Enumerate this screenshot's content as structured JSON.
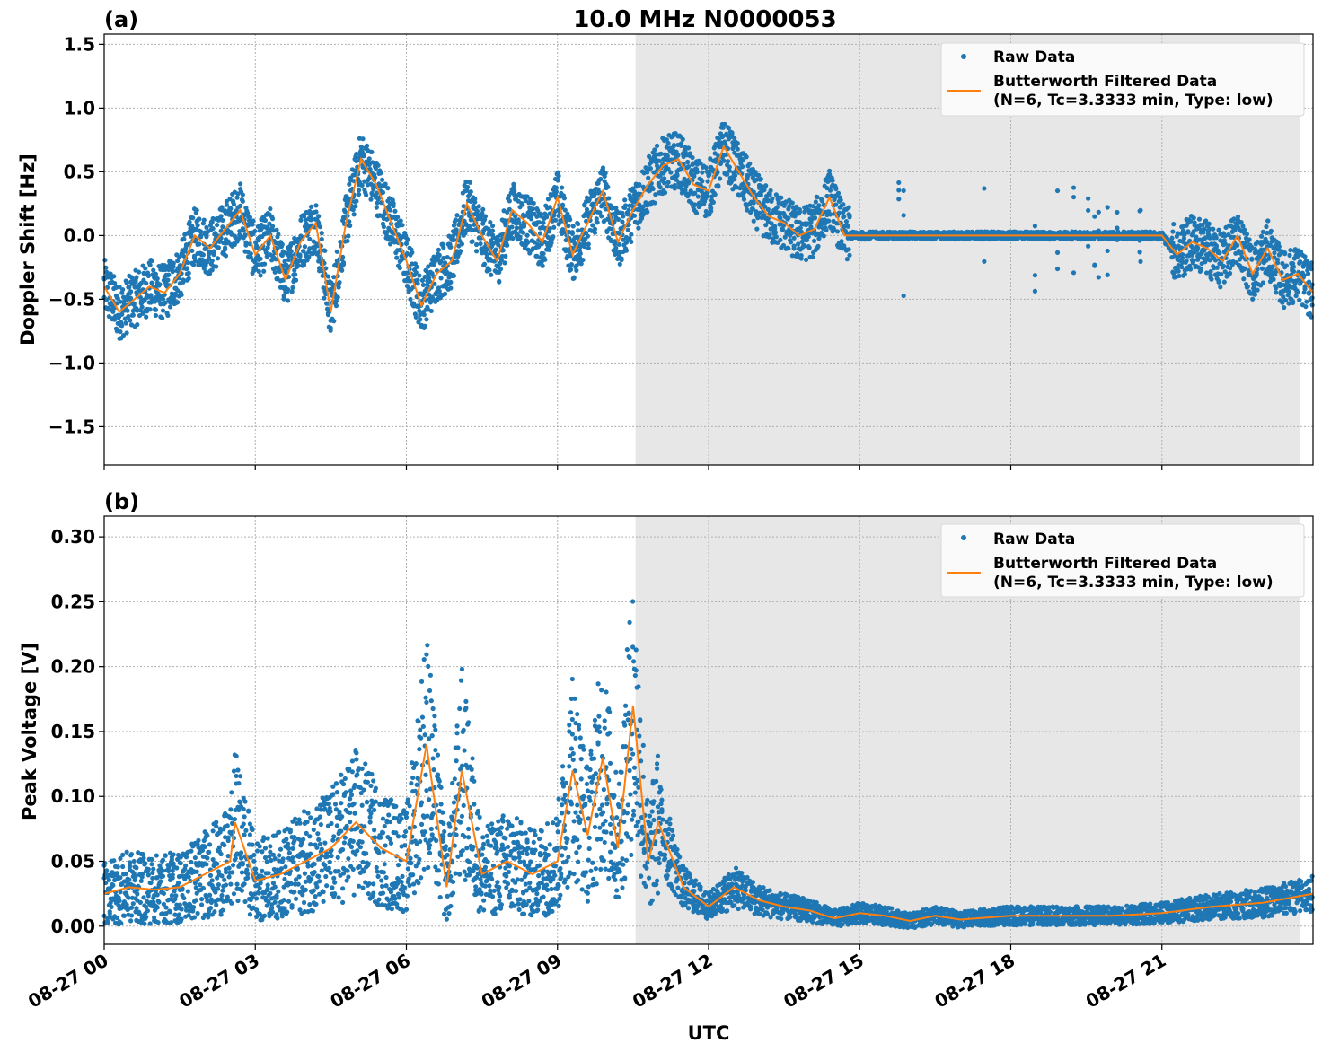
{
  "title": "10.0 MHz N0000053",
  "xlabel": "UTC",
  "colors": {
    "raw": "#1f77b4",
    "filtered": "#ff7f0e",
    "shade": "#e7e7e7"
  },
  "legend": {
    "raw_label": "Raw Data",
    "filtered_line1": "Butterworth Filtered Data",
    "filtered_line2": "(N=6, Tc=3.3333 min, Type: low)"
  },
  "chart_data": [
    {
      "type": "scatter",
      "panel_label": "(a)",
      "ylabel": "Doppler Shift [Hz]",
      "xlim": [
        0,
        24
      ],
      "ylim": [
        -1.8,
        1.58
      ],
      "x_ticks": [
        0,
        3,
        6,
        9,
        12,
        15,
        18,
        21
      ],
      "x_tick_labels": [
        "08-27 00",
        "08-27 03",
        "08-27 06",
        "08-27 09",
        "08-27 12",
        "08-27 15",
        "08-27 18",
        "08-27 21"
      ],
      "y_ticks": [
        -1.5,
        -1.0,
        -0.5,
        0.0,
        0.5,
        1.0,
        1.5
      ],
      "y_tick_labels": [
        "−1.5",
        "−1.0",
        "−0.5",
        "0.0",
        "0.5",
        "1.0",
        "1.5"
      ],
      "shaded_range": [
        10.55,
        23.75
      ],
      "legend_position": "upper right",
      "series": [
        {
          "name": "Butterworth Filtered Data",
          "x": [
            0,
            0.3,
            0.6,
            0.9,
            1.2,
            1.5,
            1.8,
            2.1,
            2.4,
            2.7,
            3.0,
            3.3,
            3.6,
            3.9,
            4.2,
            4.5,
            4.8,
            5.1,
            5.4,
            5.7,
            6.0,
            6.3,
            6.6,
            6.9,
            7.2,
            7.5,
            7.8,
            8.1,
            8.4,
            8.7,
            9.0,
            9.3,
            9.6,
            9.9,
            10.2,
            10.5,
            10.8,
            11.1,
            11.4,
            11.7,
            12.0,
            12.3,
            12.6,
            12.9,
            13.2,
            13.5,
            13.8,
            14.1,
            14.4,
            14.7,
            15.0,
            15.5,
            16.0,
            17.0,
            18.0,
            19.0,
            20.0,
            21.0,
            21.3,
            21.6,
            21.9,
            22.2,
            22.5,
            22.8,
            23.1,
            23.4,
            23.7,
            24.0
          ],
          "y": [
            -0.4,
            -0.6,
            -0.5,
            -0.4,
            -0.45,
            -0.3,
            0.0,
            -0.1,
            0.05,
            0.2,
            -0.15,
            0.0,
            -0.35,
            -0.05,
            0.1,
            -0.6,
            0.1,
            0.6,
            0.4,
            0.1,
            -0.2,
            -0.55,
            -0.3,
            -0.2,
            0.25,
            0.0,
            -0.2,
            0.2,
            0.1,
            -0.05,
            0.3,
            -0.15,
            0.1,
            0.35,
            -0.05,
            0.2,
            0.4,
            0.55,
            0.6,
            0.4,
            0.35,
            0.7,
            0.5,
            0.3,
            0.15,
            0.1,
            0.0,
            0.05,
            0.3,
            0.0,
            0.0,
            0.0,
            0.0,
            0.0,
            0.0,
            0.0,
            0.0,
            0.0,
            -0.15,
            -0.05,
            -0.1,
            -0.2,
            0.0,
            -0.3,
            -0.1,
            -0.35,
            -0.3,
            -0.45
          ]
        }
      ]
    },
    {
      "type": "scatter",
      "panel_label": "(b)",
      "ylabel": "Peak Voltage [V]",
      "xlim": [
        0,
        24
      ],
      "ylim": [
        -0.014,
        0.316
      ],
      "x_ticks": [
        0,
        3,
        6,
        9,
        12,
        15,
        18,
        21
      ],
      "x_tick_labels": [
        "08-27 00",
        "08-27 03",
        "08-27 06",
        "08-27 09",
        "08-27 12",
        "08-27 15",
        "08-27 18",
        "08-27 21"
      ],
      "y_ticks": [
        0.0,
        0.05,
        0.1,
        0.15,
        0.2,
        0.25,
        0.3
      ],
      "y_tick_labels": [
        "0.00",
        "0.05",
        "0.10",
        "0.15",
        "0.20",
        "0.25",
        "0.30"
      ],
      "shaded_range": [
        10.55,
        23.75
      ],
      "legend_position": "upper right",
      "series": [
        {
          "name": "Butterworth Filtered Data",
          "x": [
            0,
            0.5,
            1.0,
            1.5,
            2.0,
            2.5,
            2.6,
            3.0,
            3.5,
            4.0,
            4.5,
            5.0,
            5.5,
            6.0,
            6.4,
            6.8,
            7.1,
            7.5,
            8.0,
            8.5,
            9.0,
            9.3,
            9.6,
            9.9,
            10.2,
            10.5,
            10.8,
            11.0,
            11.5,
            12.0,
            12.5,
            13.0,
            13.5,
            14.0,
            14.5,
            15.0,
            15.5,
            16.0,
            16.5,
            17.0,
            18.0,
            19.0,
            20.0,
            21.0,
            22.0,
            23.0,
            24.0
          ],
          "y": [
            0.025,
            0.03,
            0.028,
            0.03,
            0.04,
            0.05,
            0.08,
            0.035,
            0.04,
            0.05,
            0.06,
            0.08,
            0.06,
            0.05,
            0.14,
            0.03,
            0.12,
            0.04,
            0.05,
            0.04,
            0.05,
            0.12,
            0.07,
            0.13,
            0.06,
            0.17,
            0.05,
            0.08,
            0.03,
            0.015,
            0.03,
            0.02,
            0.015,
            0.012,
            0.006,
            0.01,
            0.008,
            0.004,
            0.008,
            0.005,
            0.008,
            0.008,
            0.008,
            0.01,
            0.015,
            0.018,
            0.025
          ]
        }
      ]
    }
  ]
}
